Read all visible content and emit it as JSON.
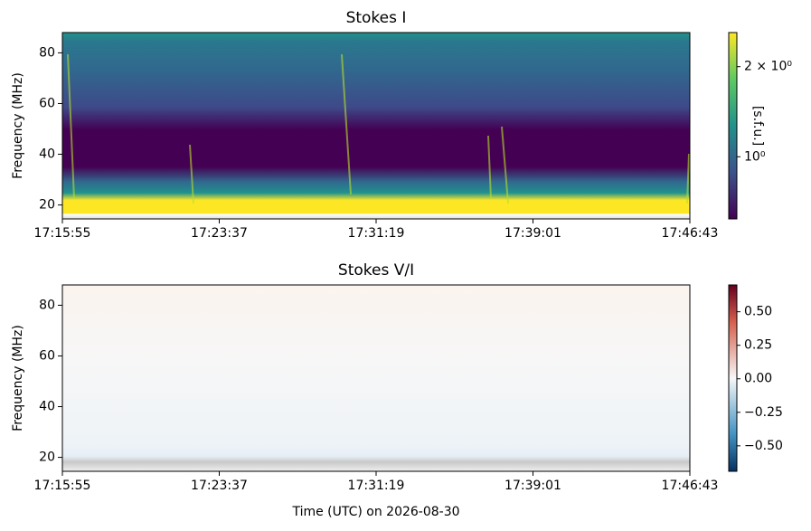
{
  "chart_data": [
    {
      "type": "spectrogram",
      "title": "Stokes I",
      "ylabel": "Frequency (MHz)",
      "xlim": [
        "17:15:55",
        "17:46:43"
      ],
      "xticks": [
        "17:15:55",
        "17:23:37",
        "17:31:19",
        "17:39:01",
        "17:46:43"
      ],
      "ylim": [
        14.5,
        88
      ],
      "yticks": [
        20,
        40,
        60,
        80
      ],
      "colormap": "viridis",
      "colorbar_log": true,
      "clim": [
        0.62,
        2.6
      ],
      "colorbar_label": "[s.f.u.]",
      "colorbar_ticks": [
        {
          "value": 1,
          "label": "10⁰"
        },
        {
          "value": 2,
          "label": "2 × 10⁰"
        }
      ]
    },
    {
      "type": "spectrogram",
      "title": "Stokes V/I",
      "ylabel": "Frequency (MHz)",
      "xlabel": "Time (UTC) on 2026-08-30",
      "xlim": [
        "17:15:55",
        "17:46:43"
      ],
      "xticks": [
        "17:15:55",
        "17:23:37",
        "17:31:19",
        "17:39:01",
        "17:46:43"
      ],
      "ylim": [
        14.5,
        88
      ],
      "yticks": [
        20,
        40,
        60,
        80
      ],
      "colormap": "RdBu_r",
      "colorbar_log": false,
      "clim": [
        -0.69,
        0.7
      ],
      "colorbar_ticks": [
        {
          "value": -0.5,
          "label": "−0.50"
        },
        {
          "value": -0.25,
          "label": "−0.25"
        },
        {
          "value": 0,
          "label": "0.00"
        },
        {
          "value": 0.25,
          "label": "0.25"
        },
        {
          "value": 0.5,
          "label": "0.50"
        }
      ]
    }
  ]
}
